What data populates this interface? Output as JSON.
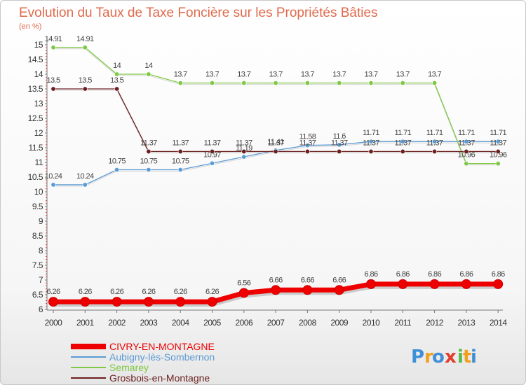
{
  "chart_data": {
    "type": "line",
    "title": "Evolution du Taux de Taxe Foncière sur les Propriétés Bâties",
    "unit_label": "(en %)",
    "xlabel": "",
    "ylabel": "(en %)",
    "x": [
      "2000",
      "2001",
      "2002",
      "2003",
      "2004",
      "2005",
      "2006",
      "2007",
      "2008",
      "2009",
      "2010",
      "2011",
      "2012",
      "2013",
      "2014"
    ],
    "ylim": [
      6,
      15
    ],
    "y_ticks": [
      "6",
      "6.5",
      "7",
      "7.5",
      "8",
      "8.5",
      "9",
      "9.5",
      "10",
      "10.5",
      "11",
      "11.5",
      "12",
      "12.5",
      "13",
      "13.5",
      "14",
      "14.5",
      "15"
    ],
    "grid": false,
    "legend_position": "bottom-left",
    "series": [
      {
        "name": "CIVRY-EN-MONTAGNE",
        "color": "#ee0000",
        "values": [
          6.26,
          6.26,
          6.26,
          6.26,
          6.26,
          6.26,
          6.56,
          6.66,
          6.66,
          6.66,
          6.86,
          6.86,
          6.86,
          6.86,
          6.86
        ],
        "labels": [
          "6.26",
          "6.26",
          "6.26",
          "6.26",
          "6.26",
          "6.26",
          "6.56",
          "6.66",
          "6.66",
          "6.66",
          "6.86",
          "6.86",
          "6.86",
          "6.86",
          "6.86"
        ]
      },
      {
        "name": "Aubigny-lès-Sombernon",
        "color": "#5b9bd5",
        "values": [
          10.24,
          10.24,
          10.75,
          10.75,
          10.75,
          10.97,
          11.19,
          11.41,
          11.58,
          11.6,
          11.71,
          11.71,
          11.71,
          11.71,
          11.71
        ],
        "labels": [
          "10.24",
          "10.24",
          "10.75",
          "10.75",
          "10.75",
          "10.97",
          "11.19",
          "11.41",
          "11.58",
          "11.6",
          "11.71",
          "11.71",
          "11.71",
          "11.71",
          "11.71"
        ]
      },
      {
        "name": "Semarey",
        "color": "#7ec843",
        "values": [
          14.91,
          14.91,
          14,
          14,
          13.7,
          13.7,
          13.7,
          13.7,
          13.7,
          13.7,
          13.7,
          13.7,
          13.7,
          10.96,
          10.96
        ],
        "labels": [
          "14.91",
          "14.91",
          "14",
          "14",
          "13.7",
          "13.7",
          "13.7",
          "13.7",
          "13.7",
          "13.7",
          "13.7",
          "13.7",
          "13.7",
          "10.96",
          "10.96"
        ]
      },
      {
        "name": "Grosbois-en-Montagne",
        "color": "#6b1f1f",
        "values": [
          13.5,
          13.5,
          13.5,
          11.37,
          11.37,
          11.37,
          11.37,
          11.37,
          11.37,
          11.37,
          11.37,
          11.37,
          11.37,
          11.37,
          11.37
        ],
        "labels": [
          "13.5",
          "13.5",
          "13.5",
          "11.37",
          "11.37",
          "11.37",
          "11.37",
          "11.37",
          "11.37",
          "11.37",
          "11.37",
          "11.37",
          "11.37",
          "11.37",
          "11.37"
        ]
      }
    ]
  },
  "logo": {
    "letters": [
      "P",
      "r",
      "o",
      "x",
      "i",
      "t",
      "i"
    ],
    "colors": [
      "#3f8fd8",
      "#f0a020",
      "#3f8fd8",
      "#e23c2c",
      "#58b848",
      "#f0a020",
      "#3f8fd8"
    ]
  }
}
